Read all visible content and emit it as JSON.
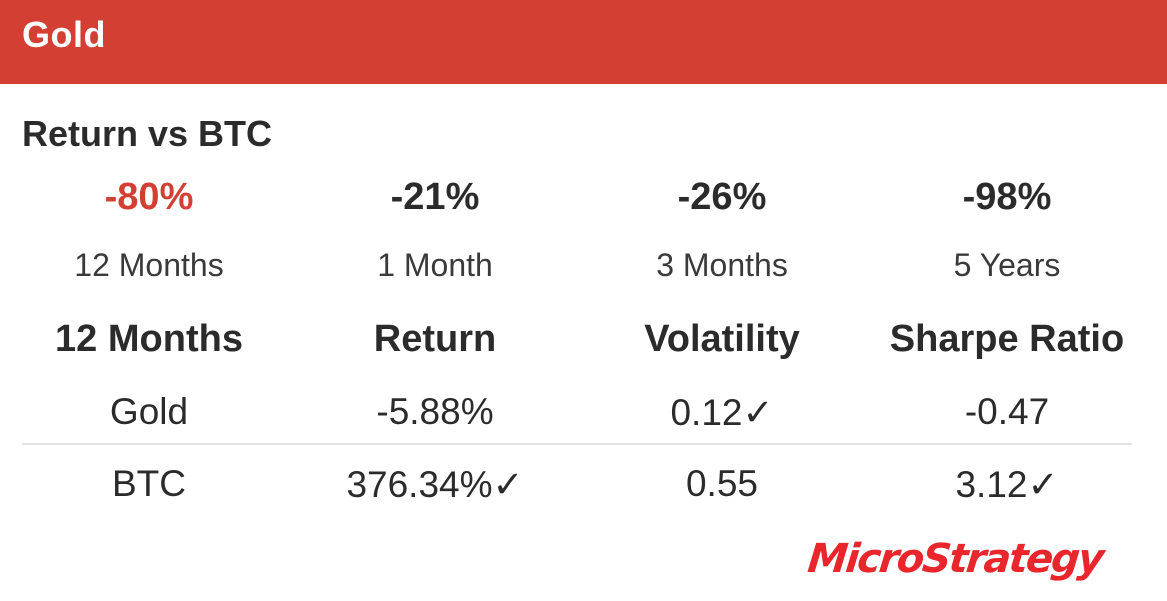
{
  "header": {
    "title": "Gold",
    "accent_color": "#d33f33"
  },
  "returns": {
    "title": "Return  vs BTC",
    "items": [
      {
        "value": "-80%",
        "period": "12 Months",
        "highlight": true
      },
      {
        "value": "-21%",
        "period": "1 Month",
        "highlight": false
      },
      {
        "value": "-26%",
        "period": "3 Months",
        "highlight": false
      },
      {
        "value": "-98%",
        "period": "5 Years",
        "highlight": false
      }
    ]
  },
  "table": {
    "headers": [
      "12 Months",
      "Return",
      "Volatility",
      "Sharpe Ratio"
    ],
    "rows": [
      [
        "Gold",
        "-5.88%",
        "0.12✓",
        "-0.47"
      ],
      [
        "BTC",
        "376.34%✓",
        "0.55",
        "3.12✓"
      ]
    ]
  },
  "logo": {
    "text": "MicroStrategy",
    "color": "#e8262b"
  }
}
